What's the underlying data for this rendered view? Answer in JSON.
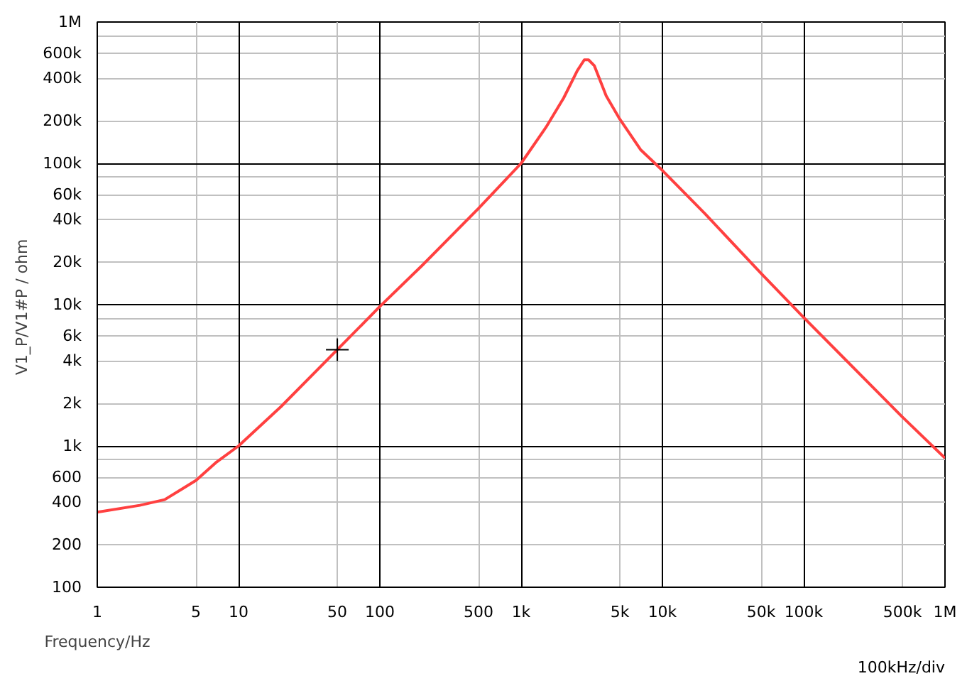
{
  "chart_data": {
    "type": "line",
    "xlabel": "Frequency/Hz",
    "ylabel": "V1_P/V1#P  / ohm",
    "annotations": [
      "100kHz/div"
    ],
    "log": "xy",
    "grid": true,
    "line_style": "solid",
    "xlim": [
      1,
      1000000
    ],
    "ylim": [
      100,
      1000000
    ],
    "xticks": [
      1,
      5,
      10,
      50,
      100,
      500,
      {
        "value": 1000,
        "label": "1k"
      },
      {
        "value": 5000,
        "label": "5k"
      },
      {
        "value": 10000,
        "label": "10k"
      },
      {
        "value": 50000,
        "label": "50k"
      },
      {
        "value": 100000,
        "label": "100k"
      },
      {
        "value": 500000,
        "label": "500k"
      },
      {
        "value": 1000000,
        "label": "1M"
      }
    ],
    "yticks": [
      100,
      200,
      400,
      600,
      {
        "value": 800,
        "label": null
      },
      {
        "value": 1000,
        "label": "1k"
      },
      {
        "value": 2000,
        "label": "2k"
      },
      {
        "value": 4000,
        "label": "4k"
      },
      {
        "value": 6000,
        "label": "6k"
      },
      {
        "value": 8000,
        "label": null
      },
      {
        "value": 10000,
        "label": "10k"
      },
      {
        "value": 20000,
        "label": "20k"
      },
      {
        "value": 40000,
        "label": "40k"
      },
      {
        "value": 60000,
        "label": "60k"
      },
      {
        "value": 80000,
        "label": null
      },
      {
        "value": 100000,
        "label": "100k"
      },
      {
        "value": 200000,
        "label": "200k"
      },
      {
        "value": 400000,
        "label": "400k"
      },
      {
        "value": 600000,
        "label": "600k"
      },
      {
        "value": 800000,
        "label": null
      },
      {
        "value": 1000000,
        "label": "1M"
      }
    ],
    "series": [
      {
        "color": "#ff4040",
        "x": [
          1,
          2,
          3,
          5,
          7,
          10,
          20,
          50,
          100,
          200,
          500,
          1000,
          1500,
          2000,
          2500,
          2800,
          3000,
          3300,
          4000,
          5000,
          7000,
          10000,
          20000,
          50000,
          100000,
          500000,
          1000000
        ],
        "values": [
          340,
          380,
          417,
          570,
          770,
          1000,
          1900,
          4800,
          9700,
          19000,
          48000,
          100000,
          180000,
          290000,
          453000,
          540000,
          540000,
          490000,
          300000,
          205000,
          125000,
          89000,
          44000,
          16600,
          8100,
          1600,
          820
        ]
      },
      {
        "type": "scatter",
        "marker": "cross",
        "color": "#000000",
        "x": [
          50
        ],
        "values": [
          4800
        ]
      }
    ]
  }
}
